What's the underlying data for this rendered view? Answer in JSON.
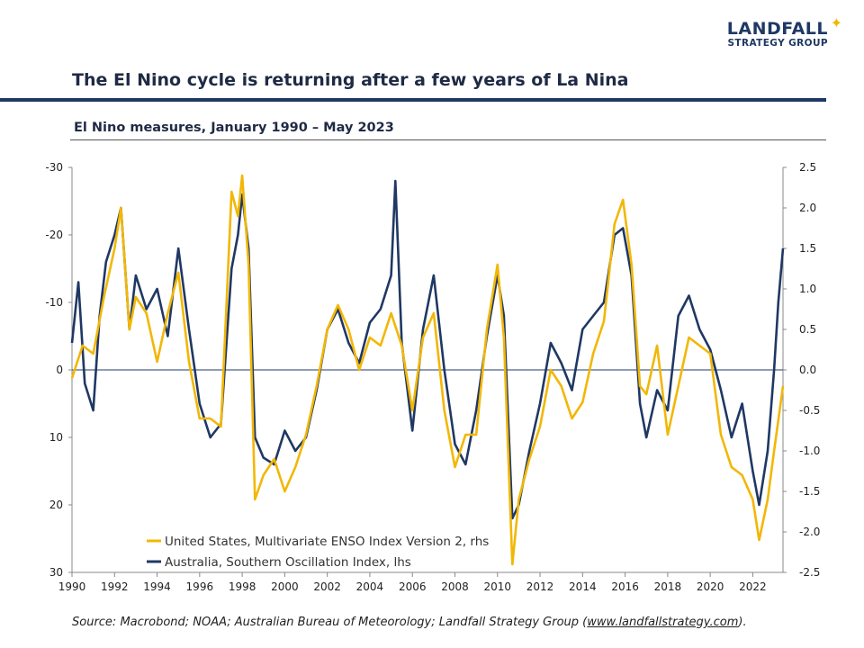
{
  "logo": {
    "name": "LANDFALL",
    "tagline": "STRATEGY GROUP",
    "star_icon": "four-point-star-icon",
    "star_color": "#f2b705"
  },
  "title": "The El Nino cycle is returning after a few years of La Nina",
  "subtitle": "El Nino measures, January 1990 – May 2023",
  "source": {
    "prefix": "Source: Macrobond; NOAA; Australian Bureau of Meteorology; Landfall Strategy Group (",
    "link": "www.landfallstrategy.com",
    "suffix": ")."
  },
  "chart_data": {
    "type": "line",
    "x_range": [
      1990.0,
      2023.42
    ],
    "x_ticks": [
      1990,
      1992,
      1994,
      1996,
      1998,
      2000,
      2002,
      2004,
      2006,
      2008,
      2010,
      2012,
      2014,
      2016,
      2018,
      2020,
      2022
    ],
    "y_left": {
      "range": [
        30,
        -30
      ],
      "inverted": true,
      "ticks": [
        -30,
        -20,
        -10,
        0,
        10,
        20,
        30
      ]
    },
    "y_right": {
      "range": [
        -2.5,
        2.5
      ],
      "ticks": [
        2.5,
        2.0,
        1.5,
        1.0,
        0.5,
        0.0,
        -0.5,
        -1.0,
        -1.5,
        -2.0,
        -2.5
      ]
    },
    "legend_position": "bottom-left",
    "series": [
      {
        "name": "United States, Multivariate ENSO Index Version 2, rhs",
        "axis": "right",
        "color": "#f2b705",
        "points": [
          [
            1990.0,
            -0.1
          ],
          [
            1990.5,
            0.3
          ],
          [
            1991.0,
            0.2
          ],
          [
            1991.5,
            0.9
          ],
          [
            1992.0,
            1.5
          ],
          [
            1992.3,
            2.0
          ],
          [
            1992.7,
            0.5
          ],
          [
            1993.0,
            0.9
          ],
          [
            1993.5,
            0.7
          ],
          [
            1994.0,
            0.1
          ],
          [
            1994.5,
            0.7
          ],
          [
            1995.0,
            1.2
          ],
          [
            1995.5,
            0.1
          ],
          [
            1996.0,
            -0.6
          ],
          [
            1996.5,
            -0.6
          ],
          [
            1997.0,
            -0.7
          ],
          [
            1997.5,
            2.2
          ],
          [
            1997.8,
            1.9
          ],
          [
            1998.0,
            2.4
          ],
          [
            1998.3,
            1.3
          ],
          [
            1998.6,
            -1.6
          ],
          [
            1999.0,
            -1.3
          ],
          [
            1999.5,
            -1.1
          ],
          [
            2000.0,
            -1.5
          ],
          [
            2000.5,
            -1.2
          ],
          [
            2001.0,
            -0.8
          ],
          [
            2001.5,
            -0.2
          ],
          [
            2002.0,
            0.5
          ],
          [
            2002.5,
            0.8
          ],
          [
            2003.0,
            0.5
          ],
          [
            2003.5,
            0.0
          ],
          [
            2004.0,
            0.4
          ],
          [
            2004.5,
            0.3
          ],
          [
            2005.0,
            0.7
          ],
          [
            2005.5,
            0.3
          ],
          [
            2006.0,
            -0.5
          ],
          [
            2006.5,
            0.4
          ],
          [
            2007.0,
            0.7
          ],
          [
            2007.5,
            -0.5
          ],
          [
            2008.0,
            -1.2
          ],
          [
            2008.5,
            -0.8
          ],
          [
            2009.0,
            -0.8
          ],
          [
            2009.5,
            0.5
          ],
          [
            2010.0,
            1.3
          ],
          [
            2010.3,
            0.4
          ],
          [
            2010.7,
            -2.4
          ],
          [
            2011.0,
            -1.6
          ],
          [
            2011.5,
            -1.1
          ],
          [
            2012.0,
            -0.7
          ],
          [
            2012.5,
            0.0
          ],
          [
            2013.0,
            -0.2
          ],
          [
            2013.5,
            -0.6
          ],
          [
            2014.0,
            -0.4
          ],
          [
            2014.5,
            0.2
          ],
          [
            2015.0,
            0.6
          ],
          [
            2015.5,
            1.8
          ],
          [
            2015.9,
            2.1
          ],
          [
            2016.3,
            1.3
          ],
          [
            2016.7,
            -0.2
          ],
          [
            2017.0,
            -0.3
          ],
          [
            2017.5,
            0.3
          ],
          [
            2018.0,
            -0.8
          ],
          [
            2018.5,
            -0.2
          ],
          [
            2019.0,
            0.4
          ],
          [
            2019.5,
            0.3
          ],
          [
            2020.0,
            0.2
          ],
          [
            2020.5,
            -0.8
          ],
          [
            2021.0,
            -1.2
          ],
          [
            2021.5,
            -1.3
          ],
          [
            2022.0,
            -1.6
          ],
          [
            2022.3,
            -2.1
          ],
          [
            2022.7,
            -1.6
          ],
          [
            2023.0,
            -1.0
          ],
          [
            2023.42,
            -0.2
          ]
        ]
      },
      {
        "name": "Australia, Southern Oscillation Index, lhs",
        "axis": "left",
        "color": "#1f3864",
        "points": [
          [
            1990.0,
            -4
          ],
          [
            1990.3,
            -13
          ],
          [
            1990.6,
            2
          ],
          [
            1991.0,
            6
          ],
          [
            1991.3,
            -8
          ],
          [
            1991.6,
            -16
          ],
          [
            1992.0,
            -20
          ],
          [
            1992.3,
            -24
          ],
          [
            1992.7,
            -6
          ],
          [
            1993.0,
            -14
          ],
          [
            1993.5,
            -9
          ],
          [
            1994.0,
            -12
          ],
          [
            1994.5,
            -5
          ],
          [
            1995.0,
            -18
          ],
          [
            1995.5,
            -6
          ],
          [
            1996.0,
            5
          ],
          [
            1996.5,
            10
          ],
          [
            1997.0,
            8
          ],
          [
            1997.5,
            -15
          ],
          [
            1997.8,
            -20
          ],
          [
            1998.0,
            -26
          ],
          [
            1998.3,
            -18
          ],
          [
            1998.6,
            10
          ],
          [
            1999.0,
            13
          ],
          [
            1999.5,
            14
          ],
          [
            2000.0,
            9
          ],
          [
            2000.5,
            12
          ],
          [
            2001.0,
            10
          ],
          [
            2001.5,
            3
          ],
          [
            2002.0,
            -6
          ],
          [
            2002.5,
            -9
          ],
          [
            2003.0,
            -4
          ],
          [
            2003.5,
            -1
          ],
          [
            2004.0,
            -7
          ],
          [
            2004.5,
            -9
          ],
          [
            2005.0,
            -14
          ],
          [
            2005.2,
            -28
          ],
          [
            2005.5,
            -4
          ],
          [
            2006.0,
            9
          ],
          [
            2006.5,
            -6
          ],
          [
            2007.0,
            -14
          ],
          [
            2007.5,
            0
          ],
          [
            2008.0,
            11
          ],
          [
            2008.5,
            14
          ],
          [
            2009.0,
            6
          ],
          [
            2009.5,
            -5
          ],
          [
            2010.0,
            -14
          ],
          [
            2010.3,
            -8
          ],
          [
            2010.7,
            22
          ],
          [
            2011.0,
            20
          ],
          [
            2011.5,
            12
          ],
          [
            2012.0,
            5
          ],
          [
            2012.5,
            -4
          ],
          [
            2013.0,
            -1
          ],
          [
            2013.5,
            3
          ],
          [
            2014.0,
            -6
          ],
          [
            2014.5,
            -8
          ],
          [
            2015.0,
            -10
          ],
          [
            2015.5,
            -20
          ],
          [
            2015.9,
            -21
          ],
          [
            2016.3,
            -14
          ],
          [
            2016.7,
            5
          ],
          [
            2017.0,
            10
          ],
          [
            2017.5,
            3
          ],
          [
            2018.0,
            6
          ],
          [
            2018.5,
            -8
          ],
          [
            2019.0,
            -11
          ],
          [
            2019.5,
            -6
          ],
          [
            2020.0,
            -3
          ],
          [
            2020.5,
            3
          ],
          [
            2021.0,
            10
          ],
          [
            2021.5,
            5
          ],
          [
            2022.0,
            15
          ],
          [
            2022.3,
            20
          ],
          [
            2022.7,
            12
          ],
          [
            2023.0,
            0
          ],
          [
            2023.2,
            -10
          ],
          [
            2023.42,
            -18
          ]
        ]
      }
    ]
  }
}
